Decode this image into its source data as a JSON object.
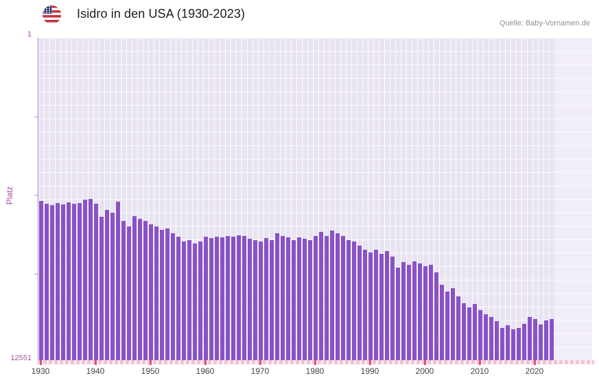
{
  "header": {
    "title": "Isidro in den USA (1930-2023)",
    "source": "Quelle: Baby-Vornamen.de"
  },
  "y_axis": {
    "label": "Platz",
    "top_label": "1",
    "bottom_label": "12551"
  },
  "colors": {
    "bar": "#8952c6",
    "plot_background": "#e9e4f1",
    "grid_line": "#ffffff",
    "future_band": "#f2eef8",
    "y_axis_text": "#a44fa4",
    "x_tick_text": "#444444",
    "x_axis_line_pink": "#f5c3d0",
    "decade_tick_red": "#e14f70",
    "title_text": "#1e1e1e",
    "source_text": "#8e8e8e"
  },
  "chart_data": {
    "type": "bar",
    "title": "Isidro in den USA (1930-2023)",
    "xlabel": "",
    "ylabel": "Platz",
    "yscale": "log",
    "y_inverted": true,
    "ylim": [
      1,
      12551
    ],
    "grid": true,
    "legend": false,
    "bar_color": "#8952c6",
    "xticks": [
      1930,
      1940,
      1950,
      1960,
      1970,
      1980,
      1990,
      2000,
      2010,
      2020
    ],
    "x": [
      1930,
      1931,
      1932,
      1933,
      1934,
      1935,
      1936,
      1937,
      1938,
      1939,
      1940,
      1941,
      1942,
      1943,
      1944,
      1945,
      1946,
      1947,
      1948,
      1949,
      1950,
      1951,
      1952,
      1953,
      1954,
      1955,
      1956,
      1957,
      1958,
      1959,
      1960,
      1961,
      1962,
      1963,
      1964,
      1965,
      1966,
      1967,
      1968,
      1969,
      1970,
      1971,
      1972,
      1973,
      1974,
      1975,
      1976,
      1977,
      1978,
      1979,
      1980,
      1981,
      1982,
      1983,
      1984,
      1985,
      1986,
      1987,
      1988,
      1989,
      1990,
      1991,
      1992,
      1993,
      1994,
      1995,
      1996,
      1997,
      1998,
      1999,
      2000,
      2001,
      2002,
      2003,
      2004,
      2005,
      2006,
      2007,
      2008,
      2009,
      2010,
      2011,
      2012,
      2013,
      2014,
      2015,
      2016,
      2017,
      2018,
      2019,
      2020,
      2021,
      2022,
      2023
    ],
    "values": [
      119,
      129,
      134,
      126,
      131,
      124,
      129,
      126,
      114,
      111,
      129,
      189,
      155,
      167,
      121,
      213,
      250,
      186,
      199,
      213,
      236,
      250,
      277,
      266,
      306,
      338,
      389,
      374,
      413,
      389,
      338,
      352,
      338,
      345,
      332,
      338,
      325,
      332,
      359,
      374,
      389,
      352,
      374,
      306,
      332,
      345,
      374,
      345,
      359,
      374,
      332,
      294,
      332,
      283,
      306,
      332,
      374,
      389,
      439,
      495,
      537,
      495,
      559,
      516,
      605,
      835,
      711,
      771,
      695,
      740,
      802,
      771,
      965,
      1380,
      1690,
      1520,
      1940,
      2370,
      2670,
      2420,
      2900,
      3270,
      3540,
      4000,
      4890,
      4510,
      5080,
      4890,
      4330,
      3540,
      3760,
      4420,
      3900,
      3760
    ]
  }
}
